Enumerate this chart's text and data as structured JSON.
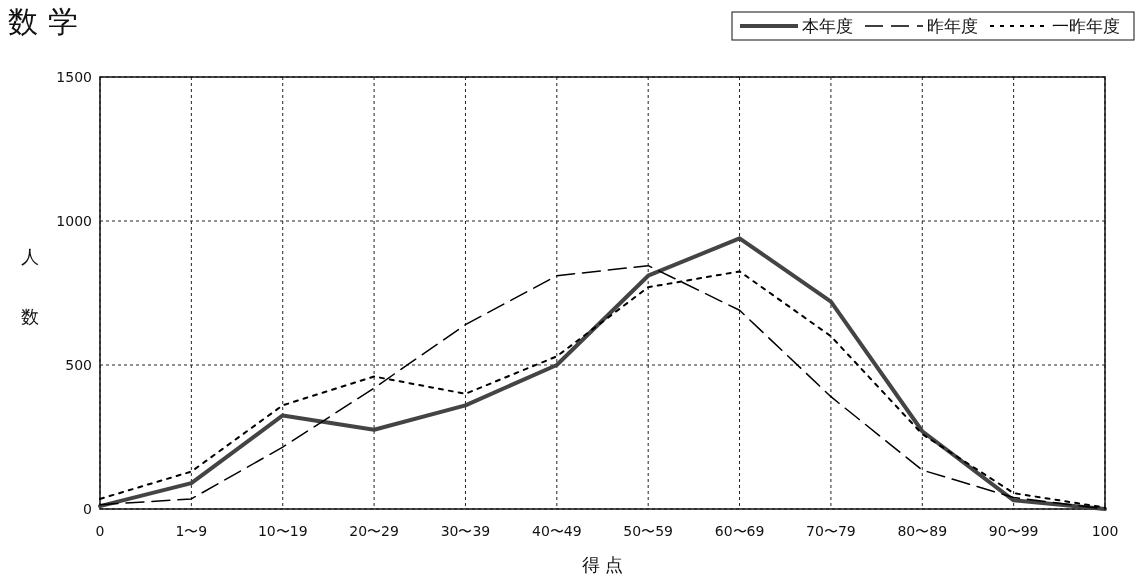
{
  "chart_data": {
    "type": "line",
    "title": "数 学",
    "xlabel": "得 点",
    "ylabel": "人数",
    "categories": [
      "0",
      "1〜9",
      "10〜19",
      "20〜29",
      "30〜39",
      "40〜49",
      "50〜59",
      "60〜69",
      "70〜79",
      "80〜89",
      "90〜99",
      "100"
    ],
    "ylim": [
      0,
      1500
    ],
    "yticks": [
      0,
      500,
      1000,
      1500
    ],
    "grid": true,
    "legend": "top right",
    "marker": "none",
    "series": [
      {
        "name": "本年度",
        "color": "#444444",
        "line_style": "solid",
        "values": [
          10,
          90,
          325,
          275,
          360,
          500,
          810,
          940,
          720,
          270,
          30,
          0
        ]
      },
      {
        "name": "昨年度",
        "color": "#000000",
        "line_style": "dashed",
        "values": [
          15,
          35,
          215,
          420,
          640,
          810,
          845,
          690,
          390,
          135,
          40,
          0
        ]
      },
      {
        "name": "一昨年度",
        "color": "#000000",
        "line_style": "dotted",
        "values": [
          35,
          130,
          360,
          460,
          400,
          530,
          770,
          825,
          600,
          260,
          55,
          5
        ]
      }
    ]
  }
}
